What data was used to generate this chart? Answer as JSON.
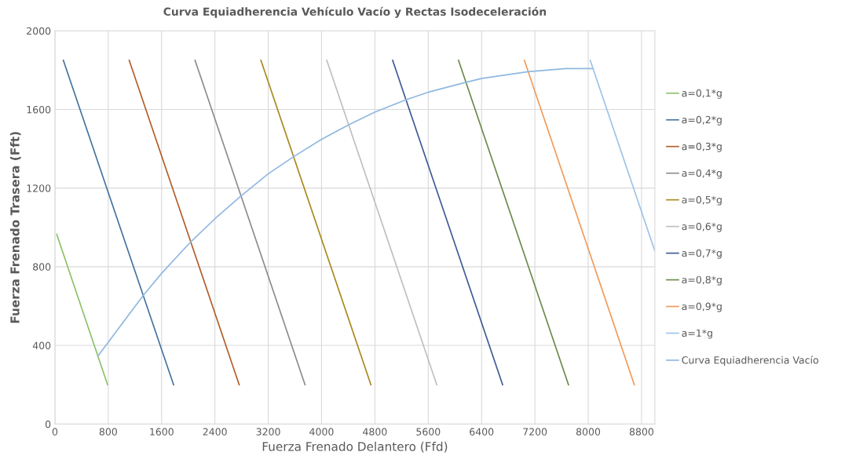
{
  "chart_data": {
    "type": "line",
    "title": "Curva Equiadherencia Vehículo Vacío y Rectas Isodeceleración",
    "xlabel": "Fuerza Frenado Delantero (Ffd)",
    "ylabel": "Fuerza Frenado Trasera (Fft)",
    "xlim": [
      0,
      9000
    ],
    "ylim": [
      0,
      2000
    ],
    "xticks": [
      0,
      800,
      1600,
      2400,
      3200,
      4000,
      4800,
      5600,
      6400,
      7200,
      8000,
      8800
    ],
    "yticks": [
      0,
      400,
      800,
      1200,
      1600,
      2000
    ],
    "grid": true,
    "legend": "right",
    "marker": "none",
    "line_style": "solid",
    "series": [
      {
        "name": "a=0,1*g",
        "color": "#8cc168",
        "x": [
          27,
          790
        ],
        "values": [
          965,
          200
        ]
      },
      {
        "name": "a=0,2*g",
        "color": "#44729e",
        "x": [
          126,
          1780
        ],
        "values": [
          1850,
          200
        ]
      },
      {
        "name": "a=0,3*g",
        "color": "#b25d2a",
        "x": [
          1114,
          2764
        ],
        "values": [
          1850,
          200
        ]
      },
      {
        "name": "a=0,4*g",
        "color": "#8c8c8c",
        "x": [
          2102,
          3752
        ],
        "values": [
          1850,
          200
        ]
      },
      {
        "name": "a=0,5*g",
        "color": "#a8891c",
        "x": [
          3090,
          4740
        ],
        "values": [
          1850,
          200
        ]
      },
      {
        "name": "a=0,6*g",
        "color": "#bfbfbf",
        "x": [
          4078,
          5728
        ],
        "values": [
          1850,
          200
        ]
      },
      {
        "name": "a=0,7*g",
        "color": "#3f5a96",
        "x": [
          5066,
          6716
        ],
        "values": [
          1850,
          200
        ]
      },
      {
        "name": "a=0,8*g",
        "color": "#6b8a4b",
        "x": [
          6054,
          7704
        ],
        "values": [
          1850,
          200
        ]
      },
      {
        "name": "a=0,9*g",
        "color": "#f19a5a",
        "x": [
          7042,
          8692
        ],
        "values": [
          1850,
          200
        ]
      },
      {
        "name": "a=1*g",
        "color": "#9dc3e6",
        "x": [
          8030,
          9000
        ],
        "values": [
          1850,
          880
        ]
      },
      {
        "name": "Curva Equiadherencia Vacío",
        "color": "#8fb8e0",
        "x": [
          648,
          1324,
          1602,
          2033,
          2403,
          2785,
          3197,
          3581,
          4000,
          4424,
          4802,
          5277,
          5602,
          6165,
          6406,
          7097,
          7663,
          8066
        ],
        "values": [
          347,
          654,
          767,
          925,
          1045,
          1158,
          1272,
          1360,
          1448,
          1525,
          1587,
          1651,
          1688,
          1738,
          1758,
          1792,
          1808,
          1808
        ]
      }
    ]
  }
}
